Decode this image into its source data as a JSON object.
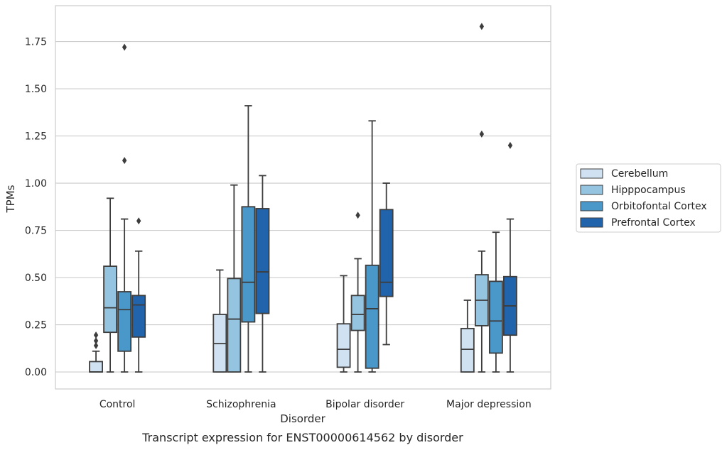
{
  "chart_data": {
    "type": "box",
    "caption": "Transcript expression for ENST00000614562 by disorder",
    "xlabel": "Disorder",
    "ylabel": "TPMs",
    "ylim": [
      -0.09,
      1.94
    ],
    "yticks": [
      0.0,
      0.25,
      0.5,
      0.75,
      1.0,
      1.25,
      1.5,
      1.75
    ],
    "ytick_labels": [
      "0.00",
      "0.25",
      "0.50",
      "0.75",
      "1.00",
      "1.25",
      "1.50",
      "1.75"
    ],
    "grid": "horizontal",
    "legend_position": "right, outside plot",
    "categories": [
      "Control",
      "Schizophrenia",
      "Bipolar disorder",
      "Major depression"
    ],
    "series": [
      {
        "name": "Cerebellum",
        "color": "#d0e1f2",
        "boxes": [
          {
            "whisker_low": 0.0,
            "q1": 0.0,
            "median": 0.0,
            "q3": 0.055,
            "whisker_high": 0.11,
            "outliers": [
              0.14,
              0.165,
              0.195
            ]
          },
          {
            "whisker_low": 0.0,
            "q1": 0.0,
            "median": 0.15,
            "q3": 0.305,
            "whisker_high": 0.54,
            "outliers": []
          },
          {
            "whisker_low": 0.0,
            "q1": 0.025,
            "median": 0.12,
            "q3": 0.255,
            "whisker_high": 0.51,
            "outliers": []
          },
          {
            "whisker_low": 0.0,
            "q1": 0.0,
            "median": 0.12,
            "q3": 0.23,
            "whisker_high": 0.38,
            "outliers": []
          }
        ]
      },
      {
        "name": "Hipppocampus",
        "color": "#94c4df",
        "boxes": [
          {
            "whisker_low": 0.0,
            "q1": 0.21,
            "median": 0.34,
            "q3": 0.56,
            "whisker_high": 0.92,
            "outliers": []
          },
          {
            "whisker_low": 0.0,
            "q1": 0.0,
            "median": 0.28,
            "q3": 0.495,
            "whisker_high": 0.99,
            "outliers": []
          },
          {
            "whisker_low": 0.0,
            "q1": 0.22,
            "median": 0.305,
            "q3": 0.405,
            "whisker_high": 0.6,
            "outliers": [
              0.83
            ]
          },
          {
            "whisker_low": 0.0,
            "q1": 0.245,
            "median": 0.38,
            "q3": 0.515,
            "whisker_high": 0.64,
            "outliers": [
              1.26,
              1.83
            ]
          }
        ]
      },
      {
        "name": "Orbitofontal Cortex",
        "color": "#4a98c9",
        "boxes": [
          {
            "whisker_low": 0.0,
            "q1": 0.11,
            "median": 0.33,
            "q3": 0.425,
            "whisker_high": 0.81,
            "outliers": [
              1.12,
              1.72
            ]
          },
          {
            "whisker_low": 0.0,
            "q1": 0.265,
            "median": 0.475,
            "q3": 0.875,
            "whisker_high": 1.41,
            "outliers": []
          },
          {
            "whisker_low": 0.0,
            "q1": 0.02,
            "median": 0.335,
            "q3": 0.565,
            "whisker_high": 1.33,
            "outliers": []
          },
          {
            "whisker_low": 0.0,
            "q1": 0.1,
            "median": 0.27,
            "q3": 0.48,
            "whisker_high": 0.74,
            "outliers": []
          }
        ]
      },
      {
        "name": "Prefrontal Cortex",
        "color": "#2164ab",
        "boxes": [
          {
            "whisker_low": 0.0,
            "q1": 0.185,
            "median": 0.355,
            "q3": 0.405,
            "whisker_high": 0.64,
            "outliers": [
              0.8
            ]
          },
          {
            "whisker_low": 0.0,
            "q1": 0.31,
            "median": 0.53,
            "q3": 0.865,
            "whisker_high": 1.04,
            "outliers": []
          },
          {
            "whisker_low": 0.145,
            "q1": 0.4,
            "median": 0.475,
            "q3": 0.86,
            "whisker_high": 1.0,
            "outliers": []
          },
          {
            "whisker_low": 0.0,
            "q1": 0.195,
            "median": 0.35,
            "q3": 0.505,
            "whisker_high": 0.81,
            "outliers": [
              1.2
            ]
          }
        ]
      }
    ]
  }
}
